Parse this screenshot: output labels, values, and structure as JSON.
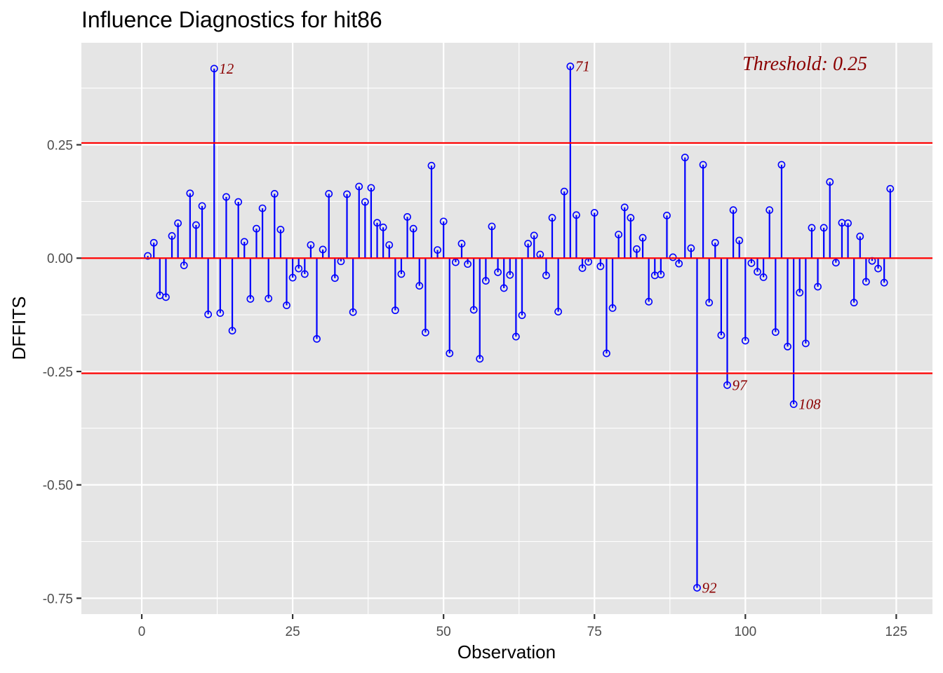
{
  "chart_data": {
    "type": "scatter",
    "title": "Influence Diagnostics for hit86",
    "xlabel": "Observation",
    "ylabel": "DFFITS",
    "xlim": [
      -10,
      131
    ],
    "ylim": [
      -0.785,
      0.475
    ],
    "x_ticks": [
      0,
      25,
      50,
      75,
      100,
      125
    ],
    "y_ticks": [
      0.25,
      0.0,
      -0.25,
      -0.5,
      -0.75
    ],
    "x_tick_labels": [
      "0",
      "25",
      "50",
      "75",
      "100",
      "125"
    ],
    "y_tick_labels": [
      "0.25",
      "0.00",
      "-0.25",
      "-0.50",
      "-0.75"
    ],
    "threshold_label": "Threshold: 0.25",
    "threshold": 0.254,
    "grid": true,
    "colors": {
      "stem": "#0000ff",
      "threshold": "#ff0000",
      "label": "#8b0000",
      "panel": "#e5e5e5",
      "grid": "#ffffff"
    },
    "series": [
      {
        "x": [
          1,
          2,
          3,
          4,
          5,
          6,
          7,
          8,
          9,
          10,
          11,
          12,
          13,
          14,
          15,
          16,
          17,
          18,
          19,
          20,
          21,
          22,
          23,
          24,
          25,
          26,
          27,
          28,
          29,
          30,
          31,
          32,
          33,
          34,
          35,
          36,
          37,
          38,
          39,
          40,
          41,
          42,
          43,
          44,
          45,
          46,
          47,
          48,
          49,
          50,
          51,
          52,
          53,
          54,
          55,
          56,
          57,
          58,
          59,
          60,
          61,
          62,
          63,
          64,
          65,
          66,
          67,
          68,
          69,
          70,
          71,
          72,
          73,
          74,
          75,
          76,
          77,
          78,
          79,
          80,
          81,
          82,
          83,
          84,
          85,
          86,
          87,
          88,
          89,
          90,
          91,
          92,
          93,
          94,
          95,
          96,
          97,
          98,
          99,
          100,
          101,
          102,
          103,
          104,
          105,
          106,
          107,
          108,
          109,
          110,
          111,
          112,
          113,
          114,
          115,
          116,
          117,
          118,
          119,
          120,
          121,
          122,
          123,
          124
        ],
        "y": [
          0.005,
          0.034,
          -0.082,
          -0.086,
          0.049,
          0.077,
          -0.016,
          0.143,
          0.073,
          0.115,
          -0.124,
          0.418,
          -0.121,
          0.135,
          -0.16,
          0.124,
          0.036,
          -0.09,
          0.065,
          0.11,
          -0.089,
          0.142,
          0.063,
          -0.104,
          -0.043,
          -0.023,
          -0.035,
          0.029,
          -0.178,
          0.019,
          0.142,
          -0.044,
          -0.007,
          0.141,
          -0.119,
          0.158,
          0.124,
          0.155,
          0.078,
          0.068,
          0.029,
          -0.115,
          -0.035,
          0.091,
          0.065,
          -0.061,
          -0.164,
          0.204,
          0.018,
          0.081,
          -0.21,
          -0.009,
          0.032,
          -0.013,
          -0.114,
          -0.222,
          -0.05,
          0.07,
          -0.031,
          -0.066,
          -0.037,
          -0.173,
          -0.126,
          0.032,
          0.05,
          0.008,
          -0.038,
          0.089,
          -0.118,
          0.147,
          0.423,
          0.095,
          -0.022,
          -0.008,
          0.1,
          -0.018,
          -0.21,
          -0.11,
          0.052,
          0.112,
          0.089,
          0.02,
          0.045,
          -0.096,
          -0.038,
          -0.036,
          0.094,
          0.002,
          -0.012,
          0.222,
          0.022,
          -0.727,
          0.206,
          -0.098,
          0.034,
          -0.17,
          -0.28,
          0.106,
          0.039,
          -0.182,
          -0.011,
          -0.03,
          -0.042,
          0.106,
          -0.163,
          0.206,
          -0.195,
          -0.322,
          -0.076,
          -0.188,
          0.067,
          -0.063,
          0.067,
          0.168,
          -0.01,
          0.078,
          0.077,
          -0.098,
          0.048,
          -0.052,
          -0.006,
          -0.023,
          -0.054,
          0.153
        ]
      }
    ],
    "labeled_points": [
      {
        "x": 12,
        "y": 0.418,
        "label": "12"
      },
      {
        "x": 71,
        "y": 0.423,
        "label": "71"
      },
      {
        "x": 92,
        "y": -0.727,
        "label": "92"
      },
      {
        "x": 97,
        "y": -0.28,
        "label": "97"
      },
      {
        "x": 108,
        "y": -0.322,
        "label": "108"
      }
    ]
  }
}
